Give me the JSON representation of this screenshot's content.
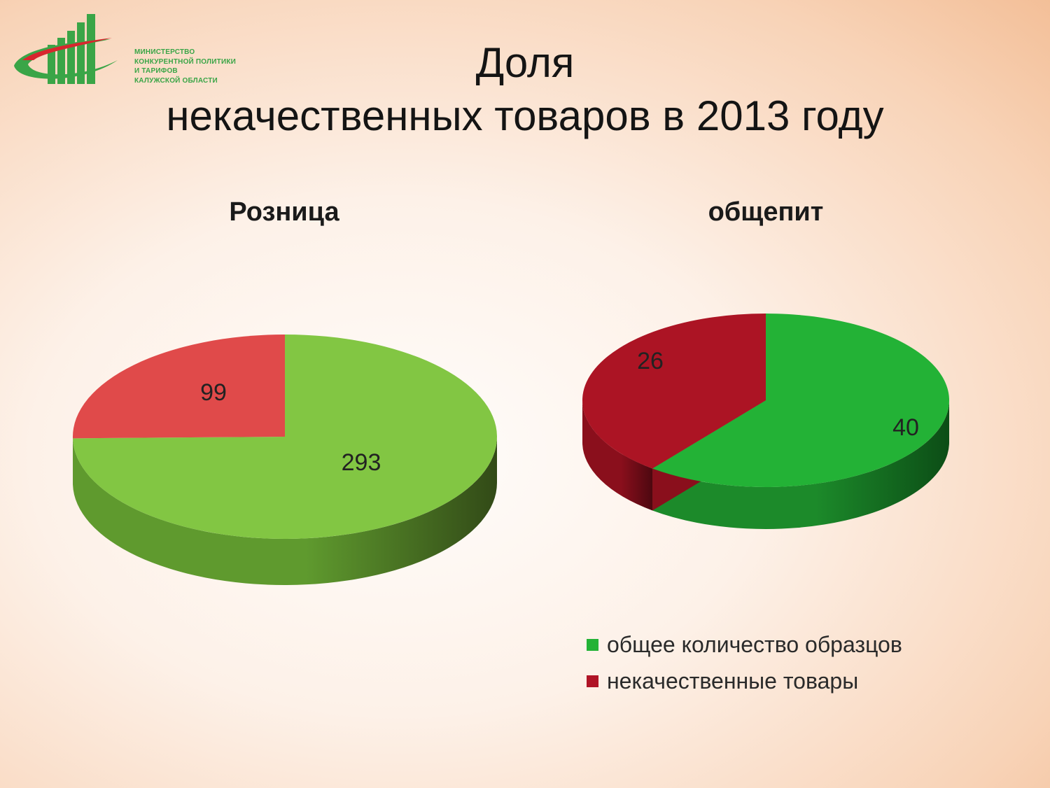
{
  "logo": {
    "lines": [
      "Министерство",
      "конкурентной политики",
      "и тарифов",
      "Калужской области"
    ]
  },
  "title": {
    "line1": "Доля",
    "line2": "некачественных товаров в 2013 году"
  },
  "legend": [
    {
      "label": "общее количество образцов",
      "color": "#23b236"
    },
    {
      "label": "некачественные товары",
      "color": "#b01426"
    }
  ],
  "chart_data": [
    {
      "type": "pie",
      "title": "Розница",
      "series": [
        {
          "label": "общее количество образцов",
          "value": 293,
          "color": "#82c643",
          "side": "#5f9a2e",
          "dark": "#324a17"
        },
        {
          "label": "некачественные товары",
          "value": 99,
          "color": "#e04a4a",
          "side": "#b03232",
          "dark": "#6e1b1b"
        }
      ]
    },
    {
      "type": "pie",
      "title": "общепит",
      "series": [
        {
          "label": "общее количество образцов",
          "value": 40,
          "color": "#23b236",
          "side": "#1c8a2a",
          "dark": "#0c4d16"
        },
        {
          "label": "некачественные товары",
          "value": 26,
          "color": "#ac1424",
          "side": "#8a0f1c",
          "dark": "#4d0810"
        }
      ]
    }
  ]
}
